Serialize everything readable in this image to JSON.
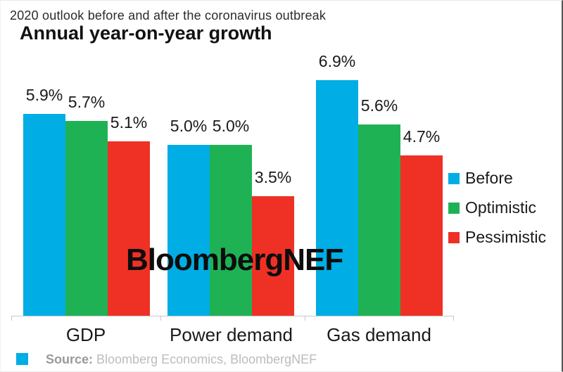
{
  "header": {
    "subtitle": "2020 outlook before and after the coronavirus outbreak",
    "title": "Annual year-on-year growth"
  },
  "watermark": "BloombergNEF",
  "colors": {
    "before_blue": "#00ade4",
    "optimistic_green": "#1fb255",
    "pessimistic_red": "#ee3124",
    "axis_gray": "#c9c9c9",
    "source_gray": "#9a9a9a"
  },
  "chart_data": {
    "type": "bar",
    "title": "Annual year-on-year growth",
    "subtitle": "2020 outlook before and after the coronavirus outbreak",
    "categories": [
      "GDP",
      "Power demand",
      "Gas demand"
    ],
    "series": [
      {
        "name": "Before",
        "color": "#00ade4",
        "values": [
          5.9,
          5.0,
          6.9
        ],
        "labels": [
          "5.9%",
          "5.0%",
          "6.9%"
        ]
      },
      {
        "name": "Optimistic",
        "color": "#1fb255",
        "values": [
          5.7,
          5.0,
          5.6
        ],
        "labels": [
          "5.7%",
          "5.0%",
          "5.6%"
        ]
      },
      {
        "name": "Pessimistic",
        "color": "#ee3124",
        "values": [
          5.1,
          3.5,
          4.7
        ],
        "labels": [
          "5.1%",
          "3.5%",
          "4.7%"
        ]
      }
    ],
    "value_suffix": "%",
    "ylim": [
      0,
      7.5
    ],
    "grid": false,
    "axis_labels_shown": false,
    "legend_position": "right",
    "data_labels": "above-bars"
  },
  "legend": {
    "items": [
      {
        "label": "Before",
        "color": "#00ade4"
      },
      {
        "label": "Optimistic",
        "color": "#1fb255"
      },
      {
        "label": "Pessimistic",
        "color": "#ee3124"
      }
    ]
  },
  "footer": {
    "source_label": "Source:",
    "source_text": "Bloomberg Economics, BloombergNEF"
  }
}
